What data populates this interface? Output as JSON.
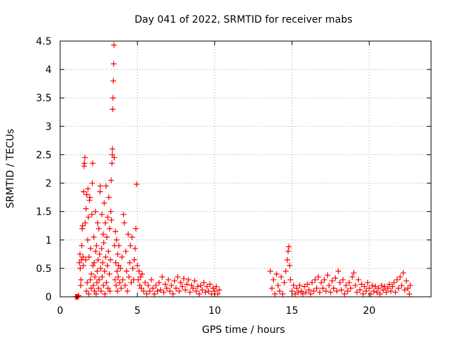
{
  "chart_data": {
    "type": "scatter",
    "title": "Day 041 of 2022, SRMTID for receiver mabs",
    "xlabel": "GPS time / hours",
    "ylabel": "SRMTID / TECUs",
    "xlim": [
      0,
      24
    ],
    "ylim": [
      0,
      4.5
    ],
    "xticks": [
      0,
      5,
      10,
      15,
      20
    ],
    "yticks": [
      0,
      0.5,
      1,
      1.5,
      2,
      2.5,
      3,
      3.5,
      4,
      4.5
    ],
    "grid": true,
    "marker": "plus",
    "color": "#ff0000",
    "series": [
      {
        "values": [
          [
            1.0,
            0.0
          ],
          [
            1.05,
            0.0
          ],
          [
            1.1,
            0.0
          ],
          [
            1.15,
            0.0
          ],
          [
            1.2,
            0.02
          ],
          [
            1.25,
            0.6
          ],
          [
            1.28,
            0.75
          ],
          [
            1.3,
            0.5
          ],
          [
            1.33,
            0.2
          ],
          [
            1.35,
            0.3
          ],
          [
            1.38,
            0.65
          ],
          [
            1.4,
            0.9
          ],
          [
            1.43,
            1.2
          ],
          [
            1.45,
            1.25
          ],
          [
            1.48,
            0.7
          ],
          [
            1.5,
            0.55
          ],
          [
            1.52,
            1.85
          ],
          [
            1.55,
            2.3
          ],
          [
            1.57,
            2.35
          ],
          [
            1.6,
            2.45
          ],
          [
            1.62,
            1.3
          ],
          [
            1.65,
            0.65
          ],
          [
            1.67,
            1.55
          ],
          [
            1.7,
            0.1
          ],
          [
            1.72,
            1.8
          ],
          [
            1.75,
            0.25
          ],
          [
            1.78,
            1.0
          ],
          [
            1.8,
            1.9
          ],
          [
            1.82,
            1.4
          ],
          [
            1.85,
            0.05
          ],
          [
            1.87,
            0.7
          ],
          [
            1.9,
            1.7
          ],
          [
            1.92,
            1.75
          ],
          [
            1.95,
            0.3
          ],
          [
            1.97,
            0.85
          ],
          [
            2.0,
            0.15
          ],
          [
            2.02,
            0.4
          ],
          [
            2.05,
            1.45
          ],
          [
            2.08,
            2.0
          ],
          [
            2.1,
            2.35
          ],
          [
            2.12,
            0.55
          ],
          [
            2.15,
            0.2
          ],
          [
            2.18,
            1.05
          ],
          [
            2.2,
            0.6
          ],
          [
            2.22,
            0.1
          ],
          [
            2.25,
            0.35
          ],
          [
            2.28,
            1.5
          ],
          [
            2.3,
            0.8
          ],
          [
            2.33,
            0.05
          ],
          [
            2.35,
            0.9
          ],
          [
            2.38,
            0.25
          ],
          [
            2.4,
            0.45
          ],
          [
            2.42,
            1.3
          ],
          [
            2.45,
            0.65
          ],
          [
            2.48,
            0.15
          ],
          [
            2.5,
            1.2
          ],
          [
            2.52,
            0.3
          ],
          [
            2.55,
            0.75
          ],
          [
            2.58,
            1.85
          ],
          [
            2.6,
            1.95
          ],
          [
            2.62,
            0.5
          ],
          [
            2.65,
            0.1
          ],
          [
            2.68,
            0.85
          ],
          [
            2.7,
            1.45
          ],
          [
            2.72,
            0.35
          ],
          [
            2.75,
            0.6
          ],
          [
            2.78,
            1.1
          ],
          [
            2.8,
            0.2
          ],
          [
            2.82,
            0.95
          ],
          [
            2.85,
            1.65
          ],
          [
            2.88,
            0.45
          ],
          [
            2.9,
            0.05
          ],
          [
            2.92,
            1.3
          ],
          [
            2.95,
            0.7
          ],
          [
            2.97,
            1.95
          ],
          [
            3.0,
            0.25
          ],
          [
            3.02,
            1.05
          ],
          [
            3.05,
            0.55
          ],
          [
            3.08,
            1.4
          ],
          [
            3.1,
            0.15
          ],
          [
            3.12,
            0.8
          ],
          [
            3.15,
            1.75
          ],
          [
            3.18,
            0.4
          ],
          [
            3.2,
            1.2
          ],
          [
            3.22,
            0.1
          ],
          [
            3.25,
            0.65
          ],
          [
            3.28,
            1.5
          ],
          [
            3.3,
            2.05
          ],
          [
            3.32,
            1.35
          ],
          [
            3.35,
            2.35
          ],
          [
            3.37,
            2.5
          ],
          [
            3.38,
            2.6
          ],
          [
            3.4,
            3.3
          ],
          [
            3.42,
            3.5
          ],
          [
            3.44,
            3.8
          ],
          [
            3.46,
            4.1
          ],
          [
            3.48,
            4.43
          ],
          [
            3.5,
            2.45
          ],
          [
            3.52,
            0.9
          ],
          [
            3.55,
            0.3
          ],
          [
            3.58,
            1.15
          ],
          [
            3.6,
            0.6
          ],
          [
            3.62,
            0.2
          ],
          [
            3.65,
            1.0
          ],
          [
            3.68,
            0.45
          ],
          [
            3.7,
            0.1
          ],
          [
            3.72,
            0.75
          ],
          [
            3.75,
            0.35
          ],
          [
            3.78,
            0.55
          ],
          [
            3.8,
            0.9
          ],
          [
            3.85,
            0.25
          ],
          [
            3.9,
            0.5
          ],
          [
            3.95,
            0.15
          ],
          [
            4.0,
            0.7
          ],
          [
            4.05,
            0.3
          ],
          [
            4.1,
            1.45
          ],
          [
            4.15,
            1.3
          ],
          [
            4.2,
            0.2
          ],
          [
            4.25,
            0.8
          ],
          [
            4.3,
            0.45
          ],
          [
            4.35,
            0.1
          ],
          [
            4.4,
            1.1
          ],
          [
            4.45,
            0.35
          ],
          [
            4.5,
            0.6
          ],
          [
            4.55,
            0.9
          ],
          [
            4.6,
            0.25
          ],
          [
            4.65,
            1.05
          ],
          [
            4.7,
            0.5
          ],
          [
            4.75,
            0.3
          ],
          [
            4.8,
            0.65
          ],
          [
            4.85,
            0.85
          ],
          [
            4.9,
            1.2
          ],
          [
            4.95,
            1.98
          ],
          [
            5.0,
            0.55
          ],
          [
            5.05,
            0.3
          ],
          [
            5.1,
            0.45
          ],
          [
            5.15,
            0.2
          ],
          [
            5.2,
            0.35
          ],
          [
            5.25,
            0.15
          ],
          [
            5.3,
            0.4
          ],
          [
            5.4,
            0.1
          ],
          [
            5.5,
            0.25
          ],
          [
            5.6,
            0.05
          ],
          [
            5.7,
            0.2
          ],
          [
            5.8,
            0.1
          ],
          [
            5.9,
            0.3
          ],
          [
            6.0,
            0.15
          ],
          [
            6.1,
            0.05
          ],
          [
            6.2,
            0.2
          ],
          [
            6.3,
            0.1
          ],
          [
            6.4,
            0.25
          ],
          [
            6.5,
            0.12
          ],
          [
            6.6,
            0.35
          ],
          [
            6.7,
            0.08
          ],
          [
            6.8,
            0.22
          ],
          [
            6.9,
            0.15
          ],
          [
            7.0,
            0.3
          ],
          [
            7.1,
            0.1
          ],
          [
            7.2,
            0.2
          ],
          [
            7.3,
            0.05
          ],
          [
            7.4,
            0.28
          ],
          [
            7.5,
            0.15
          ],
          [
            7.6,
            0.35
          ],
          [
            7.7,
            0.1
          ],
          [
            7.8,
            0.25
          ],
          [
            7.9,
            0.18
          ],
          [
            8.0,
            0.32
          ],
          [
            8.1,
            0.12
          ],
          [
            8.2,
            0.22
          ],
          [
            8.3,
            0.3
          ],
          [
            8.4,
            0.08
          ],
          [
            8.5,
            0.2
          ],
          [
            8.6,
            0.15
          ],
          [
            8.7,
            0.28
          ],
          [
            8.8,
            0.1
          ],
          [
            8.9,
            0.18
          ],
          [
            9.0,
            0.05
          ],
          [
            9.1,
            0.2
          ],
          [
            9.2,
            0.12
          ],
          [
            9.3,
            0.25
          ],
          [
            9.4,
            0.08
          ],
          [
            9.5,
            0.18
          ],
          [
            9.6,
            0.1
          ],
          [
            9.7,
            0.22
          ],
          [
            9.8,
            0.05
          ],
          [
            9.9,
            0.15
          ],
          [
            10.0,
            0.1
          ],
          [
            10.1,
            0.18
          ],
          [
            10.2,
            0.05
          ],
          [
            10.3,
            0.12
          ],
          [
            13.6,
            0.45
          ],
          [
            13.7,
            0.15
          ],
          [
            13.8,
            0.3
          ],
          [
            13.9,
            0.05
          ],
          [
            14.0,
            0.4
          ],
          [
            14.1,
            0.2
          ],
          [
            14.2,
            0.1
          ],
          [
            14.3,
            0.35
          ],
          [
            14.4,
            0.05
          ],
          [
            14.5,
            0.25
          ],
          [
            14.6,
            0.45
          ],
          [
            14.7,
            0.65
          ],
          [
            14.75,
            0.8
          ],
          [
            14.8,
            0.88
          ],
          [
            14.85,
            0.55
          ],
          [
            14.9,
            0.3
          ],
          [
            15.0,
            0.1
          ],
          [
            15.1,
            0.2
          ],
          [
            15.2,
            0.05
          ],
          [
            15.3,
            0.15
          ],
          [
            15.4,
            0.08
          ],
          [
            15.5,
            0.2
          ],
          [
            15.6,
            0.1
          ],
          [
            15.7,
            0.05
          ],
          [
            15.8,
            0.18
          ],
          [
            15.9,
            0.08
          ],
          [
            16.0,
            0.22
          ],
          [
            16.1,
            0.12
          ],
          [
            16.2,
            0.05
          ],
          [
            16.3,
            0.25
          ],
          [
            16.4,
            0.1
          ],
          [
            16.5,
            0.3
          ],
          [
            16.6,
            0.15
          ],
          [
            16.7,
            0.35
          ],
          [
            16.8,
            0.08
          ],
          [
            16.9,
            0.25
          ],
          [
            17.0,
            0.15
          ],
          [
            17.1,
            0.3
          ],
          [
            17.2,
            0.1
          ],
          [
            17.3,
            0.38
          ],
          [
            17.4,
            0.2
          ],
          [
            17.5,
            0.08
          ],
          [
            17.6,
            0.28
          ],
          [
            17.7,
            0.15
          ],
          [
            17.8,
            0.33
          ],
          [
            17.9,
            0.1
          ],
          [
            18.0,
            0.45
          ],
          [
            18.1,
            0.25
          ],
          [
            18.2,
            0.12
          ],
          [
            18.3,
            0.3
          ],
          [
            18.4,
            0.05
          ],
          [
            18.5,
            0.2
          ],
          [
            18.6,
            0.1
          ],
          [
            18.7,
            0.25
          ],
          [
            18.8,
            0.15
          ],
          [
            18.9,
            0.35
          ],
          [
            19.0,
            0.42
          ],
          [
            19.1,
            0.2
          ],
          [
            19.2,
            0.08
          ],
          [
            19.3,
            0.3
          ],
          [
            19.4,
            0.12
          ],
          [
            19.5,
            0.22
          ],
          [
            19.6,
            0.05
          ],
          [
            19.7,
            0.18
          ],
          [
            19.8,
            0.1
          ],
          [
            19.9,
            0.25
          ],
          [
            20.0,
            0.15
          ],
          [
            20.1,
            0.05
          ],
          [
            20.2,
            0.2
          ],
          [
            20.3,
            0.1
          ],
          [
            20.4,
            0.18
          ],
          [
            20.5,
            0.08
          ],
          [
            20.6,
            0.15
          ],
          [
            20.7,
            0.05
          ],
          [
            20.8,
            0.2
          ],
          [
            20.9,
            0.12
          ],
          [
            21.0,
            0.18
          ],
          [
            21.1,
            0.08
          ],
          [
            21.2,
            0.15
          ],
          [
            21.3,
            0.22
          ],
          [
            21.4,
            0.1
          ],
          [
            21.5,
            0.18
          ],
          [
            21.6,
            0.25
          ],
          [
            21.7,
            0.08
          ],
          [
            21.8,
            0.3
          ],
          [
            21.9,
            0.15
          ],
          [
            22.0,
            0.35
          ],
          [
            22.1,
            0.2
          ],
          [
            22.2,
            0.42
          ],
          [
            22.3,
            0.12
          ],
          [
            22.4,
            0.28
          ],
          [
            22.5,
            0.15
          ],
          [
            22.6,
            0.05
          ],
          [
            22.65,
            0.2
          ]
        ]
      }
    ]
  }
}
